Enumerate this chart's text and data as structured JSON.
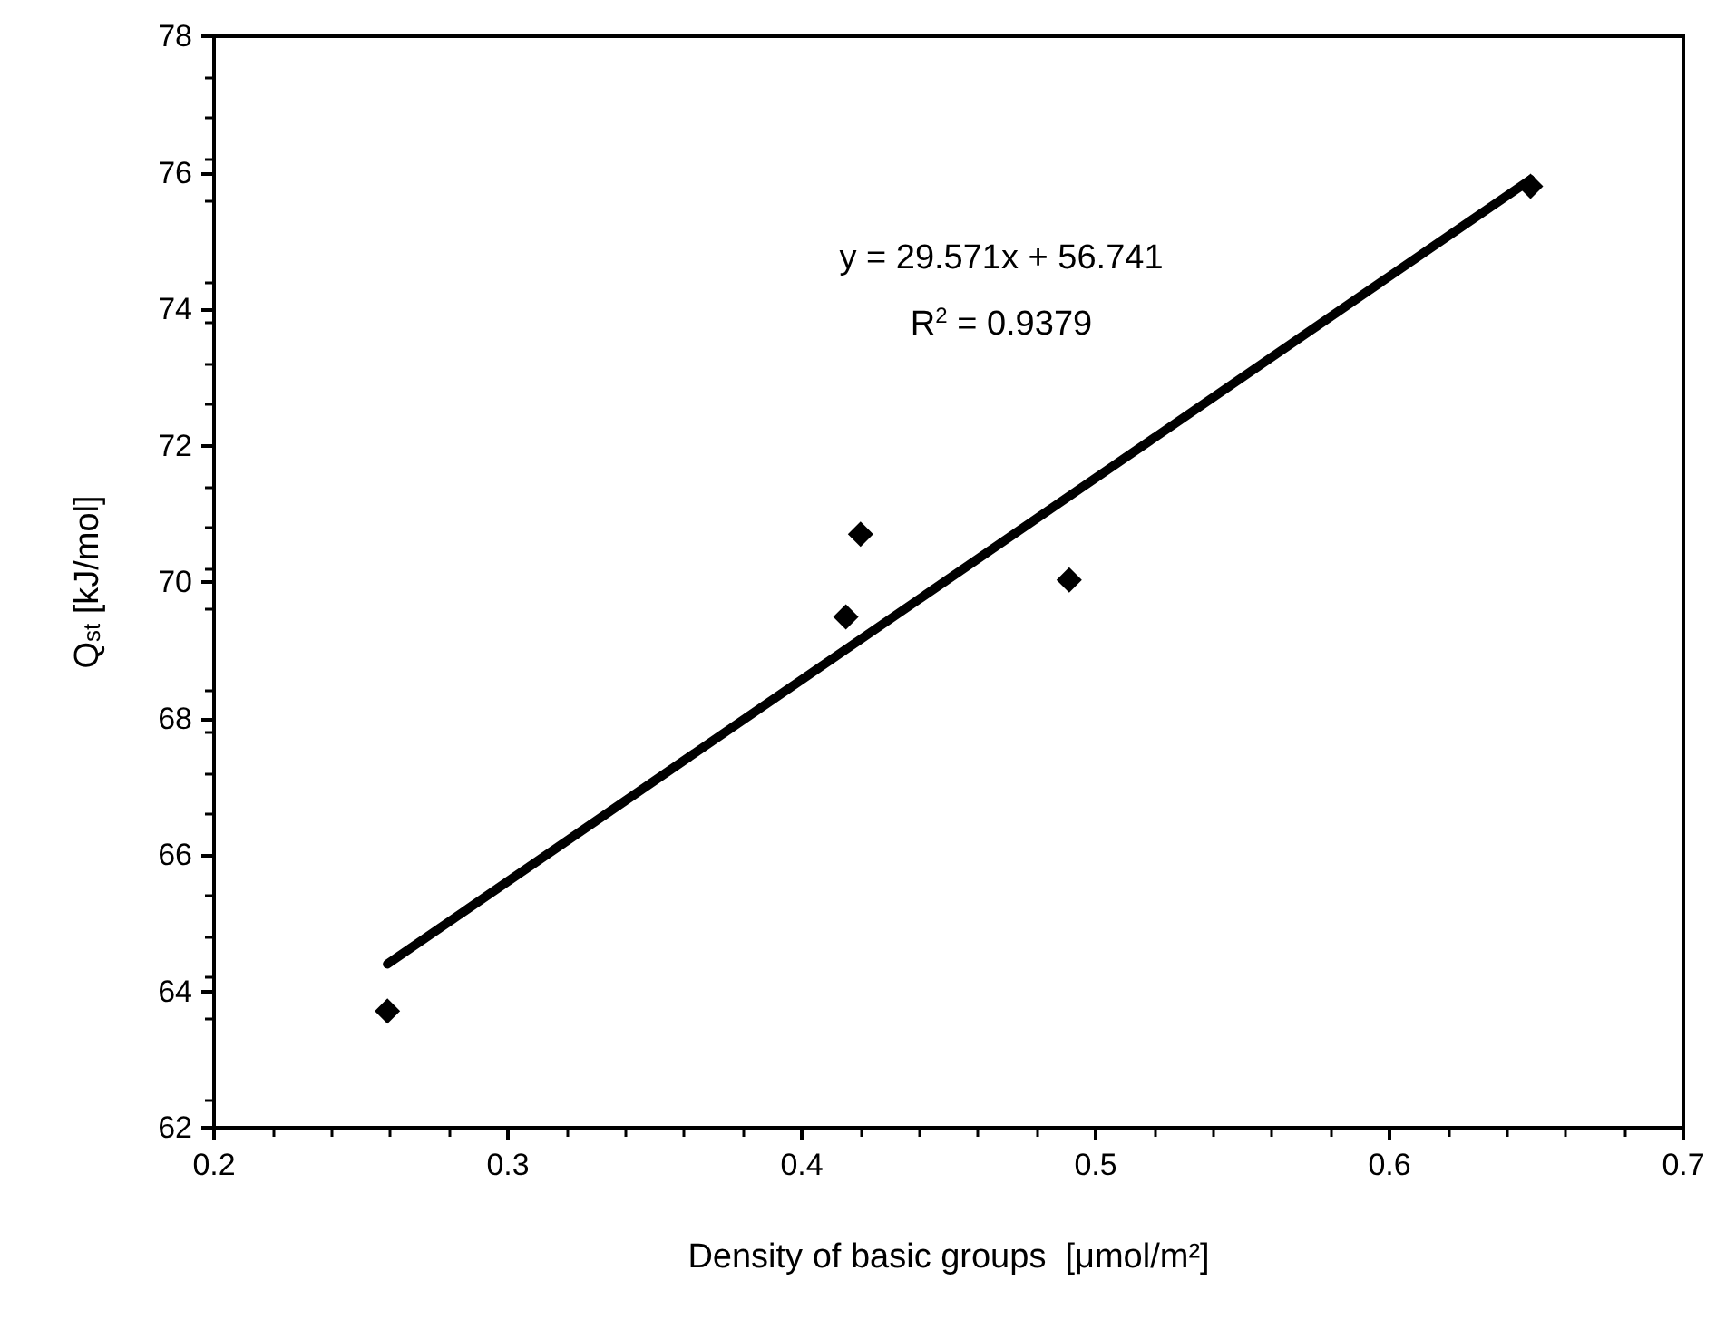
{
  "chart_data": {
    "type": "scatter",
    "xlabel": "Density of basic groups  [μmol/m²]",
    "ylabel": "Q$_{st}$ [kJ/mol]",
    "annotations": [
      "y = 29.571x + 56.741",
      "R$^{2}$ = 0.9379"
    ],
    "series": [
      {
        "color": "#000000",
        "marker": "diamond",
        "x": [
          0.259,
          0.415,
          0.42,
          0.491,
          0.648
        ],
        "values": [
          63.71,
          69.49,
          70.7,
          70.03,
          75.8
        ]
      },
      {
        "type": "line",
        "color": "#000000",
        "marker": "none",
        "line_style": "solid",
        "x": [
          0.259,
          0.648
        ],
        "values": [
          64.4,
          75.9
        ]
      }
    ],
    "xlim": [
      0.2,
      0.7
    ],
    "xticks": [
      0.2,
      0.3,
      0.4,
      0.5,
      0.6,
      0.7
    ],
    "ylim": [
      62,
      78
    ],
    "yticks": [
      62,
      64,
      66,
      68,
      70,
      72,
      74,
      76,
      78
    ],
    "grid": false
  }
}
